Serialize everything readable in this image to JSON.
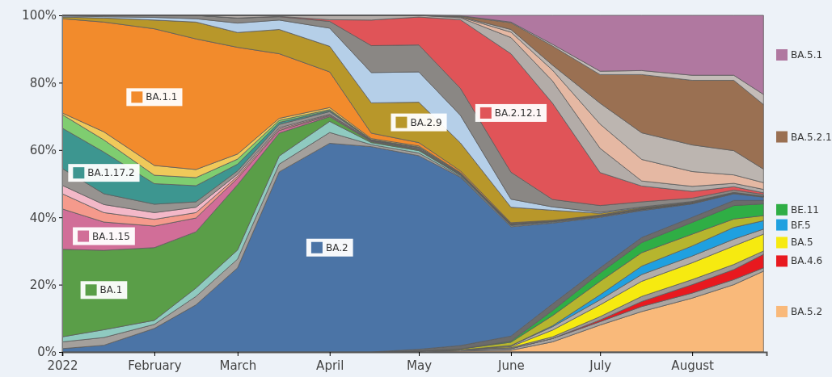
{
  "chart_data": {
    "type": "area",
    "stacked": true,
    "legend": "right",
    "x": [
      "2022-01-01",
      "2022-01-15",
      "2022-02-01",
      "2022-02-15",
      "2022-03-01",
      "2022-03-15",
      "2022-04-01",
      "2022-04-15",
      "2022-05-01",
      "2022-05-15",
      "2022-06-01",
      "2022-06-15",
      "2022-07-01",
      "2022-07-15",
      "2022-08-01",
      "2022-08-15",
      "2022-08-25"
    ],
    "xlim": [
      "2022-01-01",
      "2022-08-26"
    ],
    "xticks": [
      {
        "value": "2022-01-01",
        "label": "2022"
      },
      {
        "value": "2022-02-01",
        "label": "February"
      },
      {
        "value": "2022-03-01",
        "label": "March"
      },
      {
        "value": "2022-04-01",
        "label": "April"
      },
      {
        "value": "2022-05-01",
        "label": "May"
      },
      {
        "value": "2022-06-01",
        "label": "June"
      },
      {
        "value": "2022-07-01",
        "label": "July"
      },
      {
        "value": "2022-08-01",
        "label": "August"
      }
    ],
    "ylim": [
      0,
      100
    ],
    "yticks": [
      {
        "value": 0,
        "label": "0%"
      },
      {
        "value": 20,
        "label": "20%"
      },
      {
        "value": 40,
        "label": "40%"
      },
      {
        "value": 60,
        "label": "60%"
      },
      {
        "value": 80,
        "label": "80%"
      },
      {
        "value": 100,
        "label": "100%"
      }
    ],
    "series": [
      {
        "name": "BA.5.2",
        "color": "#f9b97a",
        "values": [
          0,
          0,
          0,
          0,
          0,
          0,
          0,
          0,
          0,
          0.3,
          0.5,
          3,
          8,
          12,
          16,
          20,
          24
        ]
      },
      {
        "color": "#a9a4a0",
        "values": [
          0,
          0,
          0,
          0,
          0,
          0,
          0,
          0,
          0.3,
          0.3,
          0.5,
          1,
          1,
          1.5,
          1.5,
          1.5,
          1
        ]
      },
      {
        "name": "BA.4.6",
        "color": "#e8191f",
        "values": [
          0,
          0,
          0,
          0,
          0,
          0,
          0,
          0,
          0,
          0,
          0,
          0,
          0.5,
          1.5,
          2.5,
          3,
          4
        ]
      },
      {
        "color": "#9e9995",
        "values": [
          0,
          0,
          0,
          0,
          0,
          0,
          0,
          0,
          0,
          0,
          0.3,
          0.5,
          1,
          1.5,
          1.5,
          1.5,
          1
        ]
      },
      {
        "name": "BA.5",
        "color": "#f6ea10",
        "values": [
          0,
          0,
          0,
          0,
          0,
          0,
          0,
          0,
          0,
          0,
          0.3,
          2,
          3.5,
          4.5,
          5,
          5.5,
          5
        ]
      },
      {
        "color": "#b2ada9",
        "values": [
          0,
          0,
          0,
          0,
          0,
          0,
          0,
          0,
          0,
          0,
          0.3,
          1,
          1.5,
          2,
          2,
          2,
          1.5
        ]
      },
      {
        "name": "BF.5",
        "color": "#1fa0e0",
        "values": [
          0,
          0,
          0,
          0,
          0,
          0,
          0,
          0,
          0,
          0,
          0,
          0.3,
          1.5,
          2.5,
          3,
          3.5,
          2.5
        ]
      },
      {
        "color": "#b6b52e",
        "values": [
          0,
          0,
          0,
          0,
          0,
          0,
          0,
          0,
          0,
          0.3,
          1,
          3,
          4,
          4,
          3.5,
          2.5,
          1.5
        ]
      },
      {
        "name": "BE.11",
        "color": "#2fae45",
        "values": [
          0,
          0,
          0,
          0,
          0,
          0,
          0,
          0,
          0,
          0,
          0.3,
          1.5,
          2.5,
          3,
          3.5,
          4,
          3.5
        ]
      },
      {
        "color": "#6b6b6b",
        "values": [
          0,
          0,
          0,
          0,
          0,
          0,
          0,
          0,
          0.5,
          1,
          1.5,
          2,
          1.5,
          1.5,
          1.5,
          1.5,
          1
        ]
      },
      {
        "name": "BA.2",
        "color": "#4b74a6",
        "values": [
          1,
          2,
          7,
          14,
          25,
          53.5,
          62,
          61,
          57.5,
          50,
          32.5,
          24,
          15,
          8,
          4,
          2,
          1
        ]
      },
      {
        "color": "#a4a09c",
        "values": [
          2,
          2.3,
          1.2,
          2.5,
          2.6,
          2.3,
          3.2,
          0.6,
          0.8,
          0.3,
          0.3,
          0.2,
          0.2,
          0.2,
          0.1,
          0.1,
          0.1
        ]
      },
      {
        "color": "#8fcac0",
        "values": [
          1.5,
          2.3,
          1.2,
          2.5,
          2.7,
          2.4,
          3.3,
          0.6,
          0.7,
          0.3,
          0.2,
          0.2,
          0.1,
          0.1,
          0.1,
          0.1,
          0
        ]
      },
      {
        "name": "BA.1",
        "color": "#5a9e48",
        "values": [
          26,
          23.6,
          21.6,
          16.7,
          19.4,
          6.8,
          1.4,
          0.3,
          0.3,
          0.2,
          0.1,
          0.1,
          0.1,
          0.1,
          0.1,
          0.1,
          0.1
        ]
      },
      {
        "name": "BA.1.15",
        "color": "#d16e98",
        "values": [
          12,
          8.4,
          6.4,
          4.1,
          1.9,
          0.8,
          0.3,
          0.1,
          0.1,
          0.1,
          0.1,
          0,
          0,
          0,
          0,
          0,
          0
        ]
      },
      {
        "color": "#f59a8c",
        "values": [
          4.5,
          2.8,
          2,
          1.6,
          0.6,
          0.4,
          0.2,
          0.1,
          0.1,
          0,
          0,
          0,
          0,
          0,
          0,
          0,
          0
        ]
      },
      {
        "color": "#f3b8c8",
        "values": [
          2.5,
          2.4,
          2,
          1.6,
          0.6,
          0.4,
          0.2,
          0.1,
          0.1,
          0,
          0,
          0,
          0,
          0,
          0,
          0,
          0
        ]
      },
      {
        "color": "#979390",
        "values": [
          5,
          3.2,
          2.5,
          1.6,
          1,
          1,
          0.8,
          0.1,
          0.3,
          0.2,
          0.2,
          0.1,
          0.1,
          0.1,
          0.1,
          0.1,
          0.1
        ]
      },
      {
        "name": "BA.1.17.2",
        "color": "#3d9690",
        "values": [
          12,
          12.4,
          6.1,
          4.8,
          2,
          0.6,
          0.3,
          0.1,
          0.1,
          0.1,
          0,
          0,
          0,
          0,
          0,
          0,
          0
        ]
      },
      {
        "color": "#7fcd70",
        "values": [
          4,
          3.6,
          2.5,
          2.4,
          1.5,
          0.6,
          0.3,
          0.1,
          0.1,
          0.1,
          0,
          0,
          0,
          0,
          0,
          0,
          0
        ]
      },
      {
        "color": "#f0c95a",
        "values": [
          0.5,
          2.4,
          2.9,
          2.4,
          1.5,
          0.6,
          0.6,
          0.3,
          0.3,
          0.1,
          0.1,
          0.1,
          0.1,
          0.1,
          0,
          0,
          0
        ]
      },
      {
        "name": "BA.1.1",
        "color": "#f28b2c",
        "values": [
          28,
          32.6,
          40.6,
          38.8,
          31.7,
          19.2,
          10.6,
          1.6,
          1,
          0.5,
          0.2,
          0.1,
          0.1,
          0.1,
          0.1,
          0,
          0
        ]
      },
      {
        "name": "BA.2.9",
        "color": "#b8972a",
        "values": [
          0.5,
          1.2,
          2.6,
          5,
          4.4,
          7.2,
          7.6,
          9,
          12,
          8.3,
          4.6,
          3,
          0.5,
          0.2,
          0.1,
          0,
          0
        ]
      },
      {
        "color": "#b5cfe8",
        "values": [
          0.3,
          0.4,
          0.8,
          1,
          2.8,
          2.8,
          5.4,
          9,
          9,
          8.2,
          2.4,
          1,
          0.3,
          0.2,
          0.1,
          0,
          0
        ]
      },
      {
        "color": "#8a8784",
        "values": [
          0.2,
          0.4,
          0.6,
          1,
          1.5,
          1,
          2,
          8,
          8,
          8,
          8,
          2.2,
          2,
          1.5,
          1,
          0.7,
          0.5
        ]
      },
      {
        "name": "BA.2.12.1",
        "color": "#e05458",
        "values": [
          0,
          0,
          0,
          0,
          0,
          0.1,
          0.5,
          7.6,
          8.3,
          20.4,
          35.2,
          28.6,
          9.8,
          4.7,
          2,
          1,
          0.5
        ]
      },
      {
        "color": "#b3aca8",
        "values": [
          0,
          0,
          0,
          0,
          0.8,
          0.3,
          1.3,
          1.4,
          0.5,
          0.6,
          4.8,
          6.6,
          7.2,
          1.5,
          1.5,
          1,
          1
        ]
      },
      {
        "color": "#e5b8a3",
        "values": [
          0,
          0,
          0,
          0,
          0,
          0,
          0,
          0,
          0,
          0.2,
          1.6,
          3.2,
          7.2,
          6.4,
          4.4,
          2.5,
          2
        ]
      },
      {
        "color": "#bcb5b0",
        "values": [
          0,
          0,
          0,
          0,
          0,
          0,
          0,
          0,
          0,
          0.1,
          0.8,
          1.5,
          6.2,
          7.9,
          7.9,
          7.2,
          4
        ]
      },
      {
        "name": "BA.5.2.1",
        "color": "#9a7052",
        "values": [
          0,
          0,
          0,
          0,
          0,
          0,
          0,
          0,
          0,
          0.2,
          2,
          5.7,
          8.5,
          17.3,
          19.2,
          20.9,
          19.2
        ]
      },
      {
        "color": "#c4bcb8",
        "values": [
          0,
          0,
          0,
          0,
          0,
          0,
          0,
          0,
          0,
          0.1,
          0.2,
          0.5,
          1,
          1.2,
          1.5,
          1.5,
          3
        ]
      },
      {
        "name": "BA.5.1",
        "color": "#b078a0",
        "values": [
          0,
          0,
          0,
          0,
          0,
          0,
          0,
          0,
          0,
          0.1,
          2,
          8.6,
          16.6,
          16.4,
          17.8,
          17.8,
          23.5
        ]
      }
    ]
  }
}
